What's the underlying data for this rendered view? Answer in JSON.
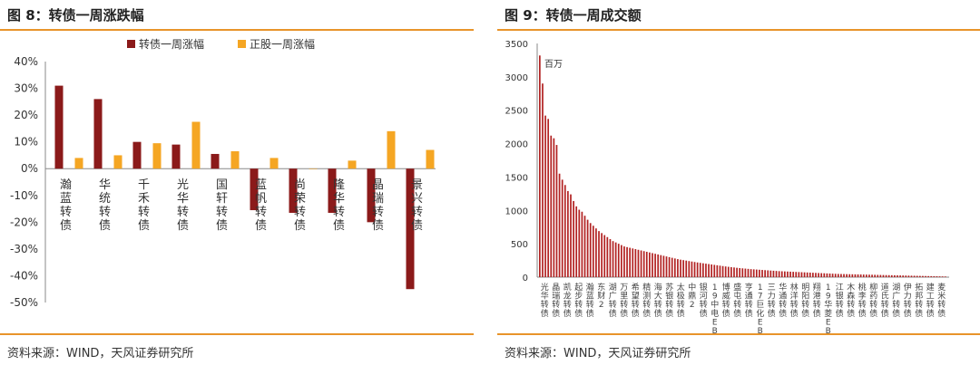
{
  "left": {
    "title": "图 8：转债一周涨跌幅",
    "source": "资料来源：WIND，天风证券研究所"
  },
  "right": {
    "title": "图 9：转债一周成交额",
    "source": "资料来源：WIND，天风证券研究所"
  },
  "chart_data": [
    {
      "type": "bar",
      "title": "",
      "categories": [
        "瀚蓝转债",
        "华统转债",
        "千禾转债",
        "光华转债",
        "国轩转债",
        "蓝帆转债",
        "尚荣转债",
        "隆华转债",
        "晶瑞转债",
        "景兴转债"
      ],
      "series": [
        {
          "name": "转债一周涨幅",
          "color": "#8b1a1a",
          "values": [
            31,
            26,
            10,
            9,
            5.5,
            -15.5,
            -16.5,
            -16.5,
            -20,
            -45
          ]
        },
        {
          "name": "正股一周涨幅",
          "color": "#f5a623",
          "values": [
            4,
            5,
            9.5,
            17.5,
            6.5,
            4,
            0,
            3,
            14,
            7
          ]
        }
      ],
      "ylim": [
        -50,
        40
      ],
      "yticks": [
        "40%",
        "30%",
        "20%",
        "10%",
        "0%",
        "-10%",
        "-20%",
        "-30%",
        "-40%",
        "-50%"
      ],
      "legend": "top-center",
      "grid": false
    },
    {
      "type": "bar",
      "title": "",
      "ylabel": "百万",
      "ylim": [
        0,
        3500
      ],
      "yticks": [
        "3500",
        "3000",
        "2500",
        "2000",
        "1500",
        "1000",
        "500",
        "0"
      ],
      "color": "#b22222",
      "grid": false,
      "values": [
        3320,
        2900,
        2420,
        2370,
        2120,
        2080,
        1980,
        1550,
        1460,
        1380,
        1290,
        1240,
        1140,
        1060,
        1010,
        980,
        920,
        860,
        810,
        770,
        730,
        690,
        660,
        630,
        600,
        570,
        540,
        520,
        500,
        480,
        460,
        450,
        440,
        430,
        420,
        410,
        400,
        390,
        380,
        370,
        360,
        350,
        340,
        330,
        320,
        310,
        300,
        290,
        280,
        270,
        262,
        255,
        248,
        241,
        234,
        227,
        220,
        214,
        208,
        202,
        196,
        190,
        184,
        178,
        172,
        166,
        160,
        155,
        150,
        145,
        140,
        136,
        132,
        128,
        124,
        120,
        117,
        114,
        111,
        108,
        105,
        102,
        99,
        96,
        93,
        90,
        88,
        86,
        84,
        82,
        80,
        78,
        76,
        74,
        72,
        70,
        68,
        66,
        64,
        62,
        60,
        58,
        56,
        54,
        52,
        50,
        48,
        47,
        46,
        45,
        44,
        43,
        42,
        41,
        40,
        39,
        38,
        37,
        36,
        35,
        34,
        33,
        32,
        31,
        30,
        29,
        28,
        27,
        26,
        25,
        24,
        23,
        22,
        21,
        20,
        19,
        18,
        17,
        16,
        15,
        14,
        13,
        12,
        11,
        10
      ],
      "category_labels": [
        "光华转债",
        "晶瑞转债",
        "凯龙转债",
        "起步转债",
        "瀚蓝转债",
        "东财2",
        "湖广转债",
        "万里转债",
        "希望转债",
        "精测转债",
        "海大转债",
        "苏银转债",
        "太极转债",
        "中鼎2",
        "银河转债",
        "19中电EB",
        "博威转债",
        "盛屯转债",
        "亨通转债",
        "17巨化EB",
        "三力转债",
        "华通转债",
        "林洋转债",
        "明阳转债",
        "翔港转债",
        "19华菱EB",
        "江银转债",
        "木森转债",
        "桃李转债",
        "柳药转债",
        "道氏转债",
        "湖广转债",
        "伊力转债",
        "拓邦转债",
        "建工转债",
        "麦米转债"
      ]
    }
  ]
}
